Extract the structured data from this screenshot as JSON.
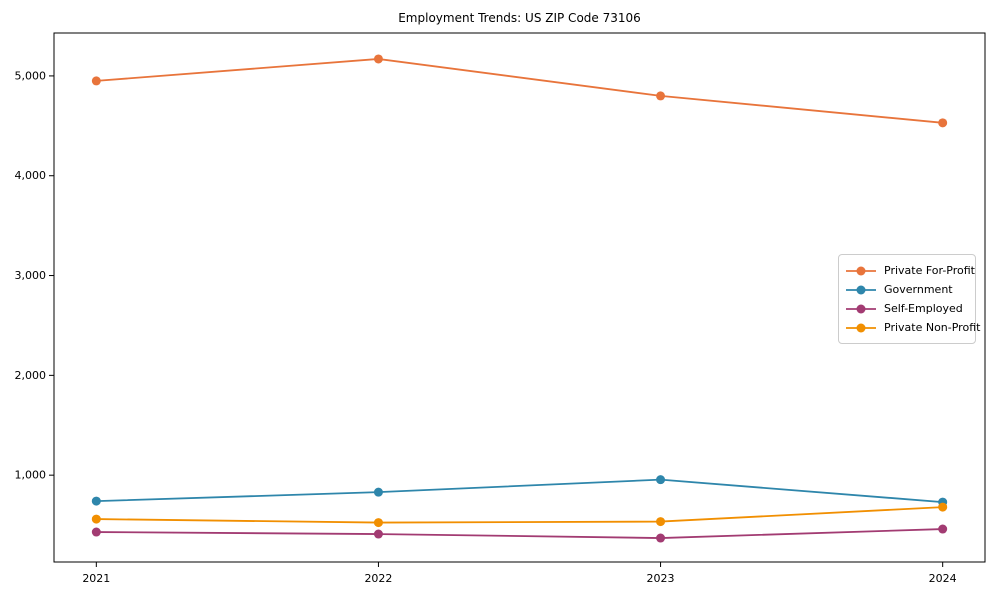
{
  "figure": {
    "background": "#ffffff"
  },
  "chart_data": {
    "type": "line",
    "title": "Employment Trends: US ZIP Code 73106",
    "xlabel": "",
    "ylabel": "",
    "categories": [
      2021,
      2022,
      2023,
      2024
    ],
    "series": [
      {
        "name": "Private For-Profit",
        "color": "#E8743B",
        "values": [
          4950,
          5170,
          4800,
          4530
        ]
      },
      {
        "name": "Government",
        "color": "#2E86AB",
        "values": [
          740,
          830,
          955,
          730
        ]
      },
      {
        "name": "Self-Employed",
        "color": "#A23B72",
        "values": [
          430,
          410,
          370,
          460
        ]
      },
      {
        "name": "Private Non-Profit",
        "color": "#F18F01",
        "values": [
          560,
          525,
          535,
          680
        ]
      }
    ],
    "y_ticks": [
      1000,
      2000,
      3000,
      4000,
      5000
    ],
    "y_tick_labels": [
      "1,000",
      "2,000",
      "3,000",
      "4,000",
      "5,000"
    ],
    "x_tick_labels": [
      "2021",
      "2022",
      "2023",
      "2024"
    ],
    "ylim": [
      130,
      5430
    ],
    "xlim": [
      2020.85,
      2024.15
    ],
    "grid": false,
    "legend_position": "center-right",
    "marker": "circle",
    "axis_color": "#000000",
    "plot_background": "#ffffff"
  }
}
